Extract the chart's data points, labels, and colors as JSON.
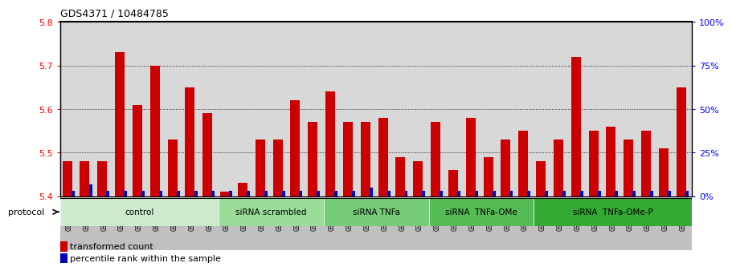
{
  "title": "GDS4371 / 10484785",
  "samples": [
    "GSM790907",
    "GSM790908",
    "GSM790909",
    "GSM790910",
    "GSM790911",
    "GSM790912",
    "GSM790913",
    "GSM790914",
    "GSM790915",
    "GSM790916",
    "GSM790917",
    "GSM790918",
    "GSM790919",
    "GSM790920",
    "GSM790921",
    "GSM790922",
    "GSM790923",
    "GSM790924",
    "GSM790925",
    "GSM790926",
    "GSM790927",
    "GSM790928",
    "GSM790929",
    "GSM790930",
    "GSM790931",
    "GSM790932",
    "GSM790933",
    "GSM790934",
    "GSM790935",
    "GSM790936",
    "GSM790937",
    "GSM790938",
    "GSM790939",
    "GSM790940",
    "GSM790941",
    "GSM790942"
  ],
  "red_values": [
    5.48,
    5.48,
    5.48,
    5.73,
    5.61,
    5.7,
    5.53,
    5.65,
    5.59,
    5.41,
    5.43,
    5.53,
    5.53,
    5.62,
    5.57,
    5.64,
    5.57,
    5.57,
    5.58,
    5.49,
    5.48,
    5.57,
    5.46,
    5.58,
    5.49,
    5.53,
    5.55,
    5.48,
    5.53,
    5.72,
    5.55,
    5.56,
    5.53,
    5.55,
    5.51,
    5.65
  ],
  "blue_values": [
    3,
    7,
    3,
    3,
    3,
    3,
    3,
    3,
    3,
    3,
    3,
    3,
    3,
    3,
    3,
    3,
    3,
    5,
    3,
    3,
    3,
    3,
    3,
    3,
    3,
    3,
    3,
    3,
    3,
    3,
    3,
    3,
    3,
    3,
    3,
    3
  ],
  "ylim_red": [
    5.4,
    5.8
  ],
  "ylim_blue": [
    0,
    100
  ],
  "yticks_red": [
    5.4,
    5.5,
    5.6,
    5.7,
    5.8
  ],
  "ytick_labels_blue": [
    "0%",
    "25%",
    "50%",
    "75%",
    "100%"
  ],
  "yticks_blue": [
    0,
    25,
    50,
    75,
    100
  ],
  "groups": [
    {
      "label": "control",
      "start": 0,
      "end": 9,
      "color": "#cceacc"
    },
    {
      "label": "siRNA scrambled",
      "start": 9,
      "end": 15,
      "color": "#99dd99"
    },
    {
      "label": "siRNA TNFa",
      "start": 15,
      "end": 21,
      "color": "#77cc77"
    },
    {
      "label": "siRNA  TNFa-OMe",
      "start": 21,
      "end": 27,
      "color": "#55bb55"
    },
    {
      "label": "siRNA  TNFa-OMe-P",
      "start": 27,
      "end": 36,
      "color": "#33aa33"
    }
  ],
  "red_color": "#cc0000",
  "blue_color": "#0000bb",
  "plot_bg": "#d8d8d8",
  "tick_bg": "#c0c0c0",
  "legend_red": "transformed count",
  "legend_blue": "percentile rank within the sample",
  "protocol_label": "protocol"
}
